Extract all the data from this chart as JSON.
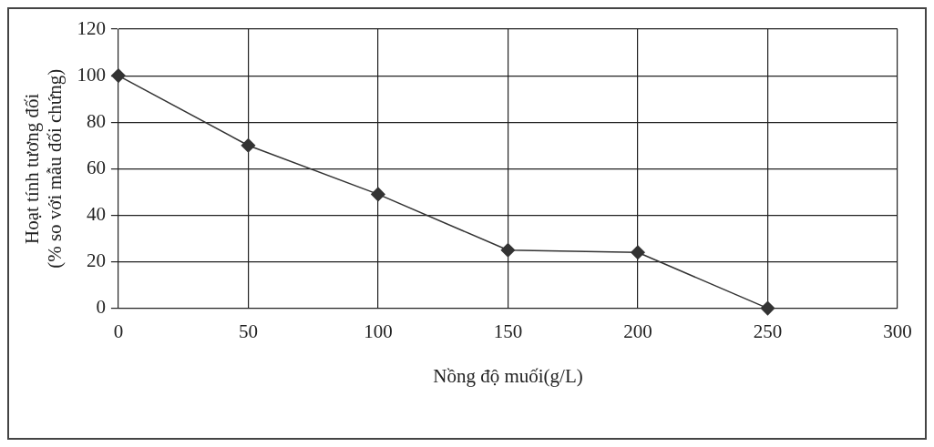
{
  "chart_data": {
    "type": "line",
    "xlabel": "Nồng độ muối(g/L)",
    "ylabel": "Hoạt tính tương đối\n(% so với mẫu đối chứng)",
    "x": [
      0,
      50,
      100,
      150,
      200,
      250
    ],
    "series": [
      {
        "color": "#333333",
        "values": [
          100,
          70,
          49,
          25,
          24,
          0
        ]
      }
    ],
    "xlim": [
      0,
      300
    ],
    "xticks": [
      0,
      50,
      100,
      150,
      200,
      250,
      300
    ],
    "ylim": [
      0,
      120
    ],
    "yticks": [
      0,
      20,
      40,
      60,
      80,
      100,
      120
    ],
    "grid": true,
    "legend": false,
    "marker": "diamond",
    "line_style": "solid"
  }
}
